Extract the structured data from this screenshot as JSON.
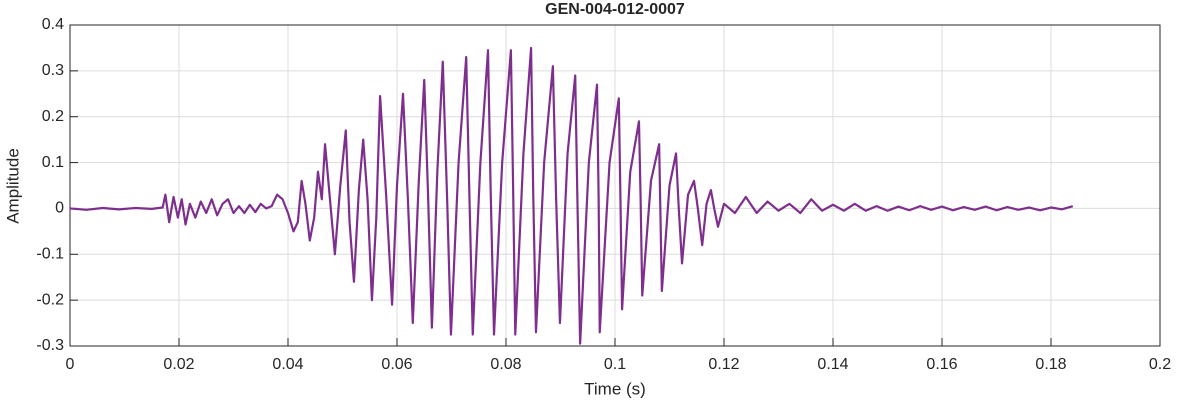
{
  "chart_data": {
    "type": "line",
    "title": "GEN-004-012-0007",
    "x_label": "Time (s)",
    "y_label": "Amplitude",
    "color": "#7e2f8e",
    "grid": true,
    "xlim": [
      0,
      0.2
    ],
    "xticks": [
      0,
      0.02,
      0.04,
      0.06,
      0.08,
      0.1,
      0.12,
      0.14,
      0.16,
      0.18,
      0.2
    ],
    "ylim": [
      -0.3,
      0.4
    ],
    "yticks": [
      -0.3,
      -0.2,
      -0.1,
      0,
      0.1,
      0.2,
      0.3,
      0.4
    ],
    "x": [
      0,
      0.003,
      0.006,
      0.009,
      0.012,
      0.015,
      0.017,
      0.0175,
      0.0182,
      0.019,
      0.0198,
      0.0205,
      0.0212,
      0.022,
      0.023,
      0.024,
      0.025,
      0.026,
      0.027,
      0.028,
      0.029,
      0.03,
      0.031,
      0.032,
      0.033,
      0.034,
      0.035,
      0.036,
      0.037,
      0.038,
      0.039,
      0.04,
      0.041,
      0.0418,
      0.0425,
      0.0432,
      0.044,
      0.0448,
      0.0455,
      0.0462,
      0.0468,
      0.0477,
      0.0486,
      0.0496,
      0.0506,
      0.0513,
      0.0521,
      0.053,
      0.0538,
      0.0546,
      0.0554,
      0.0562,
      0.0569,
      0.058,
      0.0591,
      0.06,
      0.0611,
      0.062,
      0.0629,
      0.064,
      0.065,
      0.0657,
      0.0664,
      0.0674,
      0.0684,
      0.0692,
      0.0699,
      0.0713,
      0.0727,
      0.0733,
      0.0739,
      0.0753,
      0.0767,
      0.0772,
      0.0778,
      0.0793,
      0.0809,
      0.0813,
      0.0817,
      0.0832,
      0.0846,
      0.085,
      0.0855,
      0.087,
      0.0886,
      0.0892,
      0.0899,
      0.0913,
      0.0927,
      0.0931,
      0.0936,
      0.0952,
      0.0967,
      0.097,
      0.0972,
      0.099,
      0.1007,
      0.101,
      0.1013,
      0.1028,
      0.1044,
      0.1047,
      0.105,
      0.1066,
      0.1081,
      0.1083,
      0.1086,
      0.11,
      0.1112,
      0.1117,
      0.1123,
      0.1134,
      0.1145,
      0.1152,
      0.116,
      0.1168,
      0.1176,
      0.1182,
      0.1189,
      0.12,
      0.122,
      0.124,
      0.126,
      0.128,
      0.13,
      0.132,
      0.134,
      0.136,
      0.138,
      0.14,
      0.142,
      0.144,
      0.146,
      0.148,
      0.15,
      0.152,
      0.154,
      0.156,
      0.158,
      0.16,
      0.162,
      0.164,
      0.166,
      0.168,
      0.17,
      0.172,
      0.174,
      0.176,
      0.178,
      0.18,
      0.182,
      0.184
    ],
    "values": [
      0,
      -0.003,
      0.001,
      -0.002,
      0.001,
      -0.001,
      0.002,
      0.03,
      -0.03,
      0.025,
      -0.02,
      0.02,
      -0.035,
      0.01,
      -0.02,
      0.015,
      -0.01,
      0.02,
      -0.015,
      0.01,
      0.02,
      -0.01,
      0.005,
      -0.01,
      0.008,
      -0.008,
      0.01,
      0,
      0.005,
      0.03,
      0.02,
      -0.01,
      -0.05,
      -0.03,
      0.06,
      0.01,
      -0.07,
      -0.02,
      0.08,
      0.02,
      0.14,
      0.02,
      -0.1,
      0.05,
      0.17,
      -0.03,
      -0.16,
      0.04,
      0.15,
      0.02,
      -0.2,
      -0.02,
      0.245,
      0.03,
      -0.21,
      0.05,
      0.25,
      0.02,
      -0.25,
      0.06,
      0.28,
      0.03,
      -0.26,
      0.08,
      0.32,
      0.02,
      -0.275,
      0.1,
      0.33,
      0.02,
      -0.275,
      0.1,
      0.345,
      0.03,
      -0.275,
      0.1,
      0.345,
      0.05,
      -0.275,
      0.12,
      0.35,
      0.03,
      -0.27,
      0.1,
      0.31,
      0.02,
      -0.25,
      0.12,
      0.29,
      0.02,
      -0.295,
      0.1,
      0.27,
      0.02,
      -0.27,
      0.1,
      0.24,
      0.02,
      -0.22,
      0.08,
      0.19,
      0.02,
      -0.19,
      0.06,
      0.14,
      0.01,
      -0.18,
      0.05,
      0.12,
      0,
      -0.12,
      0.03,
      0.06,
      0,
      -0.08,
      0.01,
      0.04,
      0,
      -0.04,
      0.01,
      -0.01,
      0.025,
      -0.01,
      0.015,
      -0.005,
      0.01,
      -0.01,
      0.02,
      -0.005,
      0.008,
      -0.005,
      0.01,
      -0.005,
      0.005,
      -0.005,
      0.004,
      -0.004,
      0.005,
      -0.003,
      0.004,
      -0.004,
      0.003,
      -0.003,
      0.004,
      -0.004,
      0.003,
      -0.003,
      0.002,
      -0.004,
      0.002,
      -0.002,
      0.005
    ]
  }
}
